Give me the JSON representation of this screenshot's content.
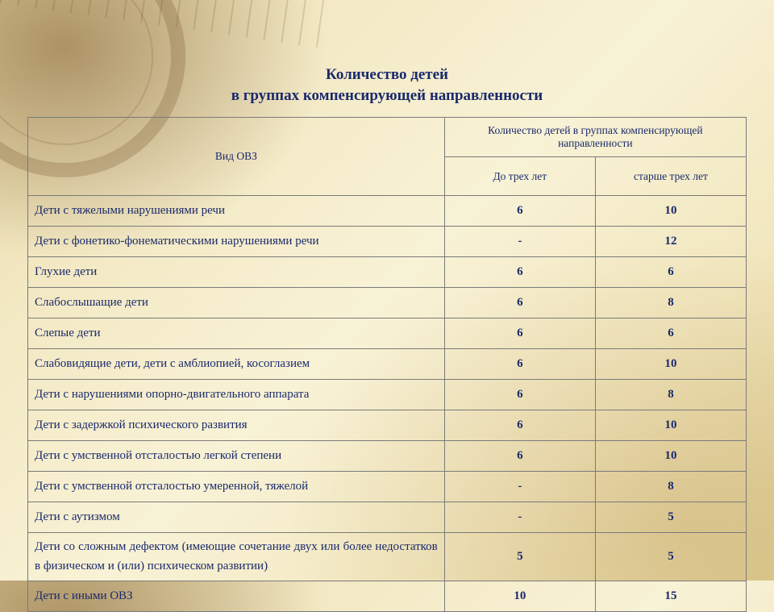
{
  "title_line1": "Количество детей",
  "title_line2": "в группах компенсирующей направленности",
  "table": {
    "type": "table",
    "text_color": "#1a2a6c",
    "border_color": "#7a7a7a",
    "col_widths_pct": [
      58,
      21,
      21
    ],
    "header": {
      "category": "Вид ОВЗ",
      "group": "Количество детей в группах компенсирующей направленности",
      "sub_under3": "До трех лет",
      "sub_over3": "старше трех лет",
      "header_fontsize_pt": 10,
      "body_fontsize_pt": 11
    },
    "rows": [
      {
        "label": "Дети с тяжелыми нарушениями речи",
        "under3": "6",
        "over3": "10"
      },
      {
        "label": "Дети с фонетико-фонематическими нарушениями речи",
        "under3": "-",
        "over3": "12"
      },
      {
        "label": "Глухие дети",
        "under3": "6",
        "over3": "6"
      },
      {
        "label": "Слабослышащие дети",
        "under3": "6",
        "over3": "8"
      },
      {
        "label": "Слепые дети",
        "under3": "6",
        "over3": "6"
      },
      {
        "label": "Слабовидящие дети, дети с амблиопией, косоглазием",
        "under3": "6",
        "over3": "10"
      },
      {
        "label": "Дети с нарушениями опорно-двигательного аппарата",
        "under3": "6",
        "over3": "8"
      },
      {
        "label": "Дети с задержкой психического развития",
        "under3": "6",
        "over3": "10"
      },
      {
        "label": "Дети с умственной отсталостью легкой степени",
        "under3": "6",
        "over3": "10"
      },
      {
        "label": "Дети с умственной отсталостью умеренной, тяжелой",
        "under3": "-",
        "over3": "8"
      },
      {
        "label": "Дети с аутизмом",
        "under3": "-",
        "over3": "5"
      },
      {
        "label": "Дети со сложным дефектом (имеющие сочетание двух или более недостатков в физическом и (или) психическом развитии)",
        "justify": true,
        "under3": "5",
        "over3": "5"
      },
      {
        "label": "Дети с иными ОВЗ",
        "under3": "10",
        "over3": "15"
      }
    ]
  },
  "background": {
    "base_gradient": [
      "#e8d9a8",
      "#f3e9c4",
      "#f8f2d6",
      "#f2e7bf",
      "#e3d39a"
    ],
    "vignette_color": "#785528"
  }
}
